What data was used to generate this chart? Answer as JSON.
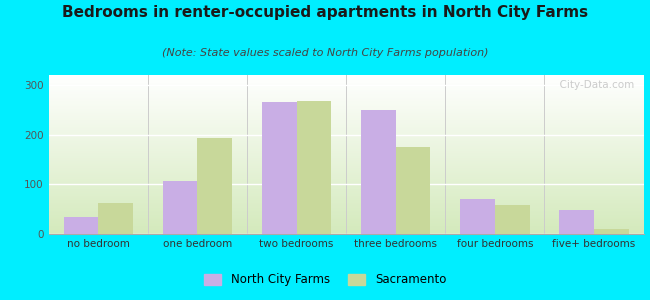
{
  "title": "Bedrooms in renter-occupied apartments in North City Farms",
  "subtitle": "(Note: State values scaled to North City Farms population)",
  "categories": [
    "no bedroom",
    "one bedroom",
    "two bedrooms",
    "three bedrooms",
    "four bedrooms",
    "five+ bedrooms"
  ],
  "north_city_farms": [
    35,
    106,
    265,
    250,
    70,
    48
  ],
  "sacramento": [
    62,
    194,
    268,
    175,
    58,
    10
  ],
  "ncf_color": "#c9aee5",
  "sac_color": "#c8d89a",
  "background_outer": "#00eeff",
  "background_chart_top": "#ffffff",
  "background_chart_bottom": "#d4eabc",
  "ylim": [
    0,
    320
  ],
  "yticks": [
    0,
    100,
    200,
    300
  ],
  "bar_width": 0.35,
  "title_fontsize": 11,
  "subtitle_fontsize": 8,
  "tick_fontsize": 7.5,
  "legend_fontsize": 8.5,
  "watermark_text": "  City-Data.com"
}
